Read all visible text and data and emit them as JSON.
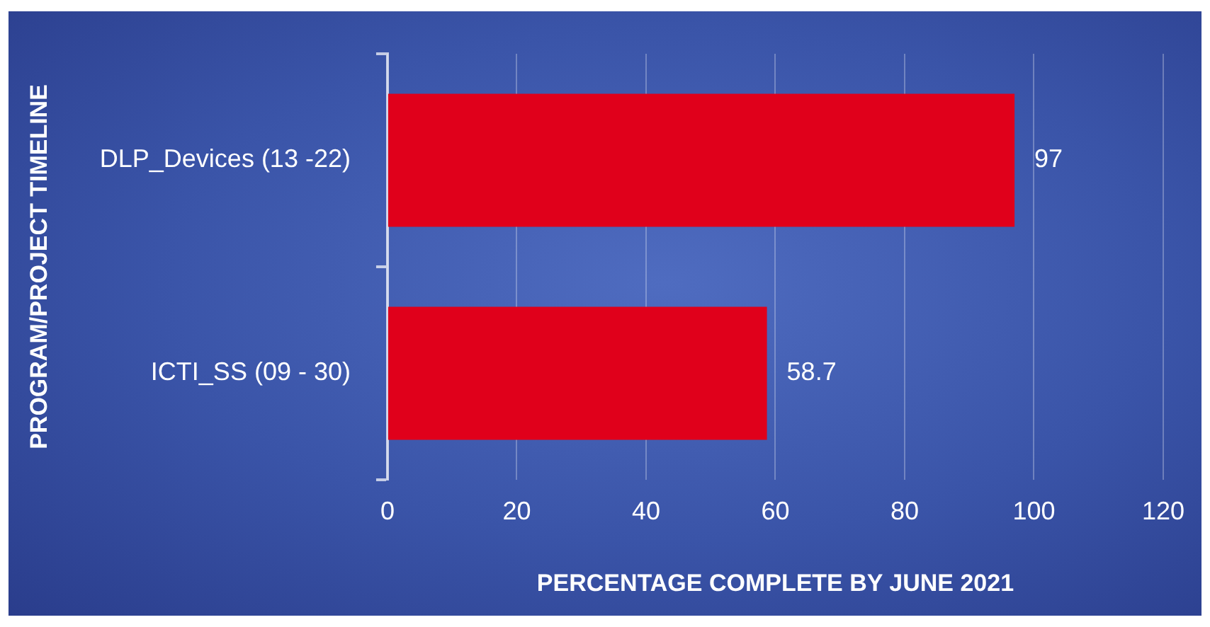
{
  "chart_data": {
    "type": "bar",
    "orientation": "horizontal",
    "xlabel": "PERCENTAGE COMPLETE BY JUNE 2021",
    "ylabel": "PROGRAM/PROJECT TIMELINE",
    "categories": [
      "DLP_Devices (13 -22)",
      "ICTI_SS (09 - 30)"
    ],
    "values": [
      97,
      58.7
    ],
    "color": "#e0001b",
    "xlim": [
      0,
      120
    ],
    "xticks": [
      0,
      20,
      40,
      60,
      80,
      100,
      120
    ],
    "grid": "x",
    "data_labels": true,
    "legend": false
  }
}
